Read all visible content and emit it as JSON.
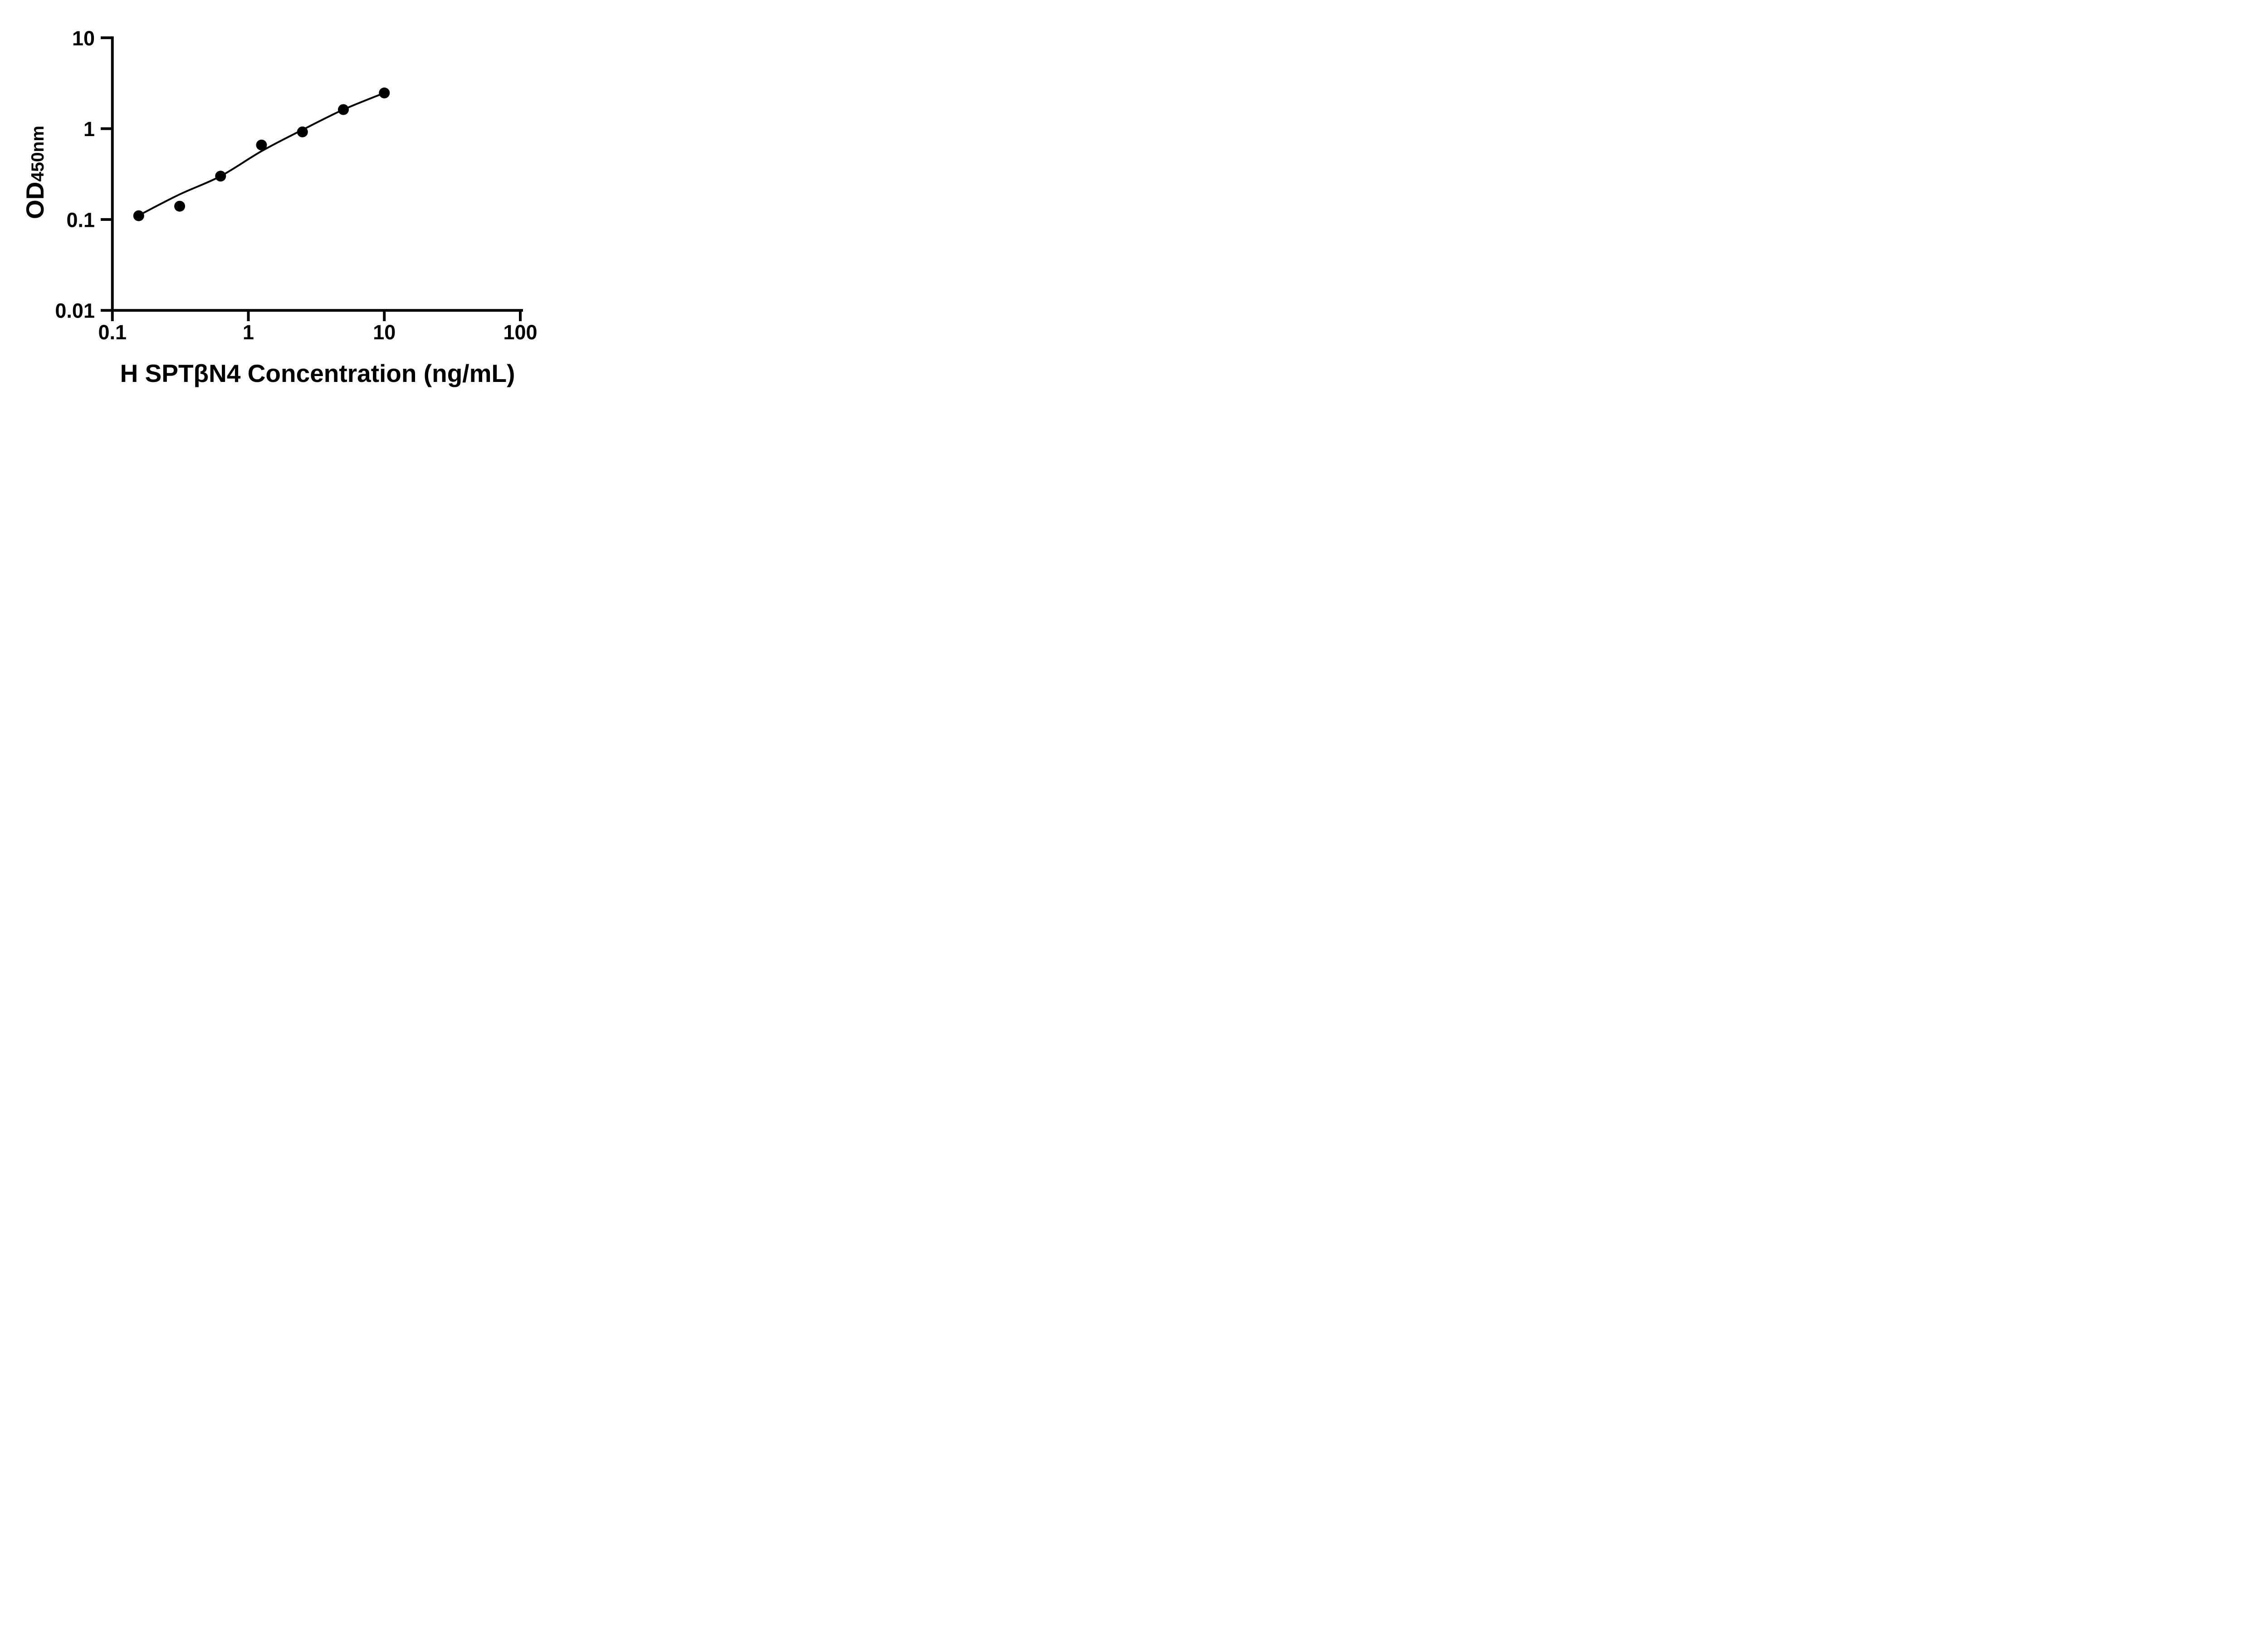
{
  "chart_data": {
    "type": "scatter",
    "title": "",
    "xlabel": "H SPTβN4 Concentration (ng/mL)",
    "ylabel_main": "OD",
    "ylabel_sub": "450nm",
    "x_scale": "log",
    "y_scale": "log",
    "xlim": [
      0.1,
      100
    ],
    "ylim": [
      0.01,
      10
    ],
    "grid": false,
    "legend": null,
    "x_ticks": [
      {
        "value": 0.1,
        "label": "0.1"
      },
      {
        "value": 1,
        "label": "1"
      },
      {
        "value": 10,
        "label": "10"
      },
      {
        "value": 100,
        "label": "100"
      }
    ],
    "y_ticks": [
      {
        "value": 10,
        "label": "10"
      },
      {
        "value": 1,
        "label": "1"
      },
      {
        "value": 0.1,
        "label": "0.1"
      },
      {
        "value": 0.01,
        "label": "0.01"
      }
    ],
    "series": [
      {
        "name": "standard-points",
        "marker": "circle",
        "color": "#000000",
        "x": [
          0.15625,
          0.3125,
          0.625,
          1.25,
          2.5,
          5,
          10
        ],
        "od": [
          0.11,
          0.14,
          0.3,
          0.66,
          0.92,
          1.62,
          2.47
        ]
      }
    ],
    "fit_line": {
      "name": "fit-curve",
      "color": "#000000",
      "x": [
        0.15625,
        0.3125,
        0.625,
        1.25,
        2.5,
        5,
        10
      ],
      "od": [
        0.111,
        0.189,
        0.3,
        0.565,
        0.97,
        1.62,
        2.47
      ]
    }
  },
  "colors": {
    "ink": "#000000",
    "background": "#ffffff"
  }
}
